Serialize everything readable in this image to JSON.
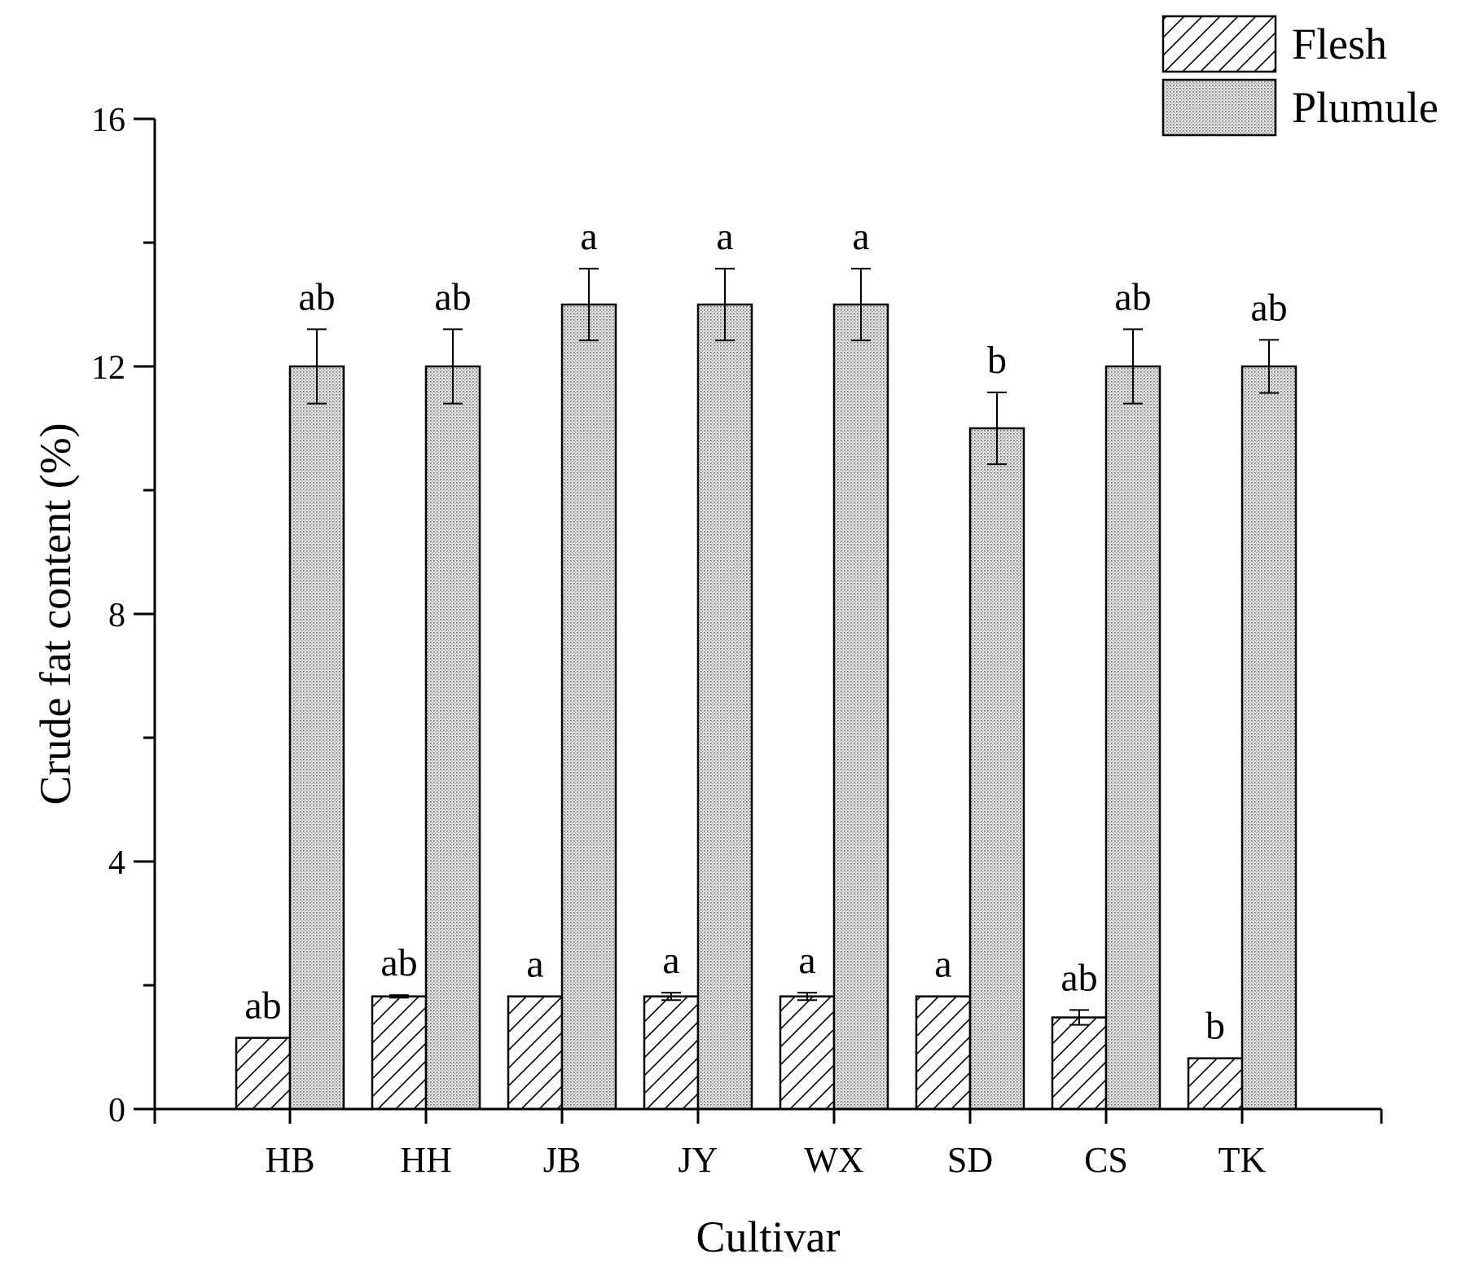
{
  "chart_data": {
    "type": "bar",
    "xlabel": "Cultivar",
    "ylabel": "Crude fat content (%)",
    "ylim": [
      0,
      16
    ],
    "yticks": [
      0,
      4,
      8,
      12,
      16
    ],
    "grid": false,
    "legend_position": "top-right",
    "categories": [
      "HB",
      "HH",
      "JB",
      "JY",
      "WX",
      "SD",
      "CS",
      "TK"
    ],
    "series": [
      {
        "name": "Flesh",
        "pattern": "diagonal-hatch",
        "values": [
          1.15,
          1.82,
          1.82,
          1.82,
          1.82,
          1.82,
          1.48,
          0.82
        ],
        "errors": [
          0,
          0.02,
          0,
          0.06,
          0.06,
          0,
          0.12,
          0
        ],
        "significance": [
          "ab",
          "ab",
          "a",
          "a",
          "a",
          "a",
          "ab",
          "b"
        ]
      },
      {
        "name": "Plumule",
        "pattern": "dotted",
        "values": [
          12.0,
          12.0,
          13.0,
          13.0,
          13.0,
          11.0,
          12.0,
          12.0
        ],
        "errors": [
          0.6,
          0.6,
          0.58,
          0.58,
          0.58,
          0.58,
          0.6,
          0.43
        ],
        "significance": [
          "ab",
          "ab",
          "a",
          "a",
          "a",
          "b",
          "ab",
          "ab"
        ]
      }
    ]
  }
}
